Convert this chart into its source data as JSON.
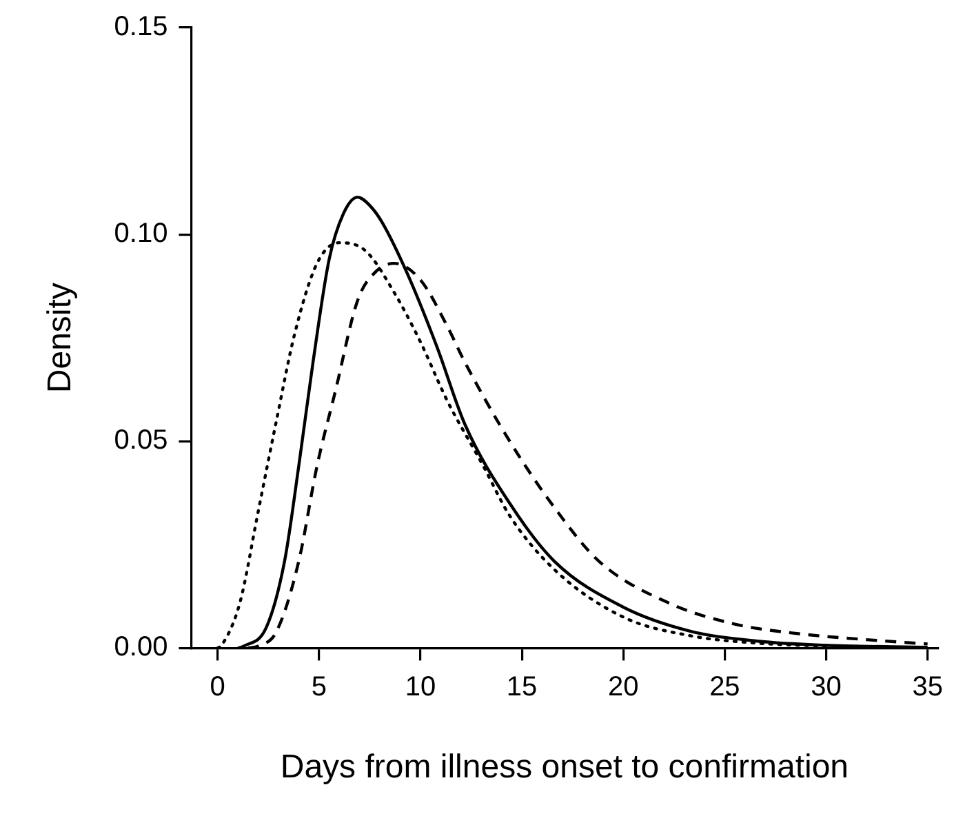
{
  "chart_data": {
    "type": "line",
    "xlabel": "Days from illness onset to confirmation",
    "ylabel": "Density",
    "xlim": [
      -1.3,
      35.5
    ],
    "ylim": [
      0,
      0.15
    ],
    "xticks": [
      0,
      5,
      10,
      15,
      20,
      25,
      30,
      35
    ],
    "yticks": [
      {
        "value": 0,
        "label": "0.00"
      },
      {
        "value": 0.05,
        "label": "0.05"
      },
      {
        "value": 0.1,
        "label": "0.10"
      },
      {
        "value": 0.15,
        "label": "0.15"
      }
    ],
    "grid": false,
    "legend": false,
    "marker": "none",
    "series": [
      {
        "color": "#000000",
        "line_style": "solid",
        "x": [
          1.0,
          1.3,
          2.4,
          3.3,
          4.0,
          4.7,
          5.5,
          6.2,
          6.9,
          7.5,
          8.1,
          9.4,
          10.8,
          12.2,
          14.4,
          16.6,
          20.0,
          23.3,
          26.6,
          29.9,
          35
        ],
        "values": [
          0,
          0.0005,
          0.005,
          0.021,
          0.044,
          0.069,
          0.094,
          0.105,
          0.109,
          0.107,
          0.103,
          0.09,
          0.073,
          0.054,
          0.035,
          0.021,
          0.0099,
          0.0041,
          0.0017,
          0.0007,
          0.0002
        ]
      },
      {
        "color": "#000000",
        "line_style": "dashed",
        "x": [
          1.5,
          2.0,
          2.9,
          4.0,
          4.9,
          5.8,
          6.9,
          7.8,
          8.7,
          10.0,
          11.3,
          12.2,
          14.4,
          16.6,
          18.8,
          22.2,
          25.5,
          28.8,
          32.1,
          35
        ],
        "values": [
          0,
          0.0005,
          0.004,
          0.021,
          0.044,
          0.062,
          0.084,
          0.091,
          0.093,
          0.089,
          0.078,
          0.069,
          0.05,
          0.034,
          0.021,
          0.011,
          0.0058,
          0.0034,
          0.002,
          0.001
        ]
      },
      {
        "color": "#000000",
        "line_style": "dotted",
        "x": [
          0,
          0.2,
          1.1,
          2.0,
          2.9,
          3.8,
          4.9,
          6.0,
          7.3,
          8.7,
          10.0,
          11.3,
          13.1,
          14.4,
          16.6,
          20.0,
          23.3,
          26.6,
          30,
          35
        ],
        "values": [
          0,
          0.0007,
          0.011,
          0.033,
          0.055,
          0.076,
          0.093,
          0.098,
          0.096,
          0.086,
          0.074,
          0.06,
          0.044,
          0.032,
          0.019,
          0.0075,
          0.003,
          0.0012,
          0.0005,
          0.0001
        ]
      }
    ]
  }
}
